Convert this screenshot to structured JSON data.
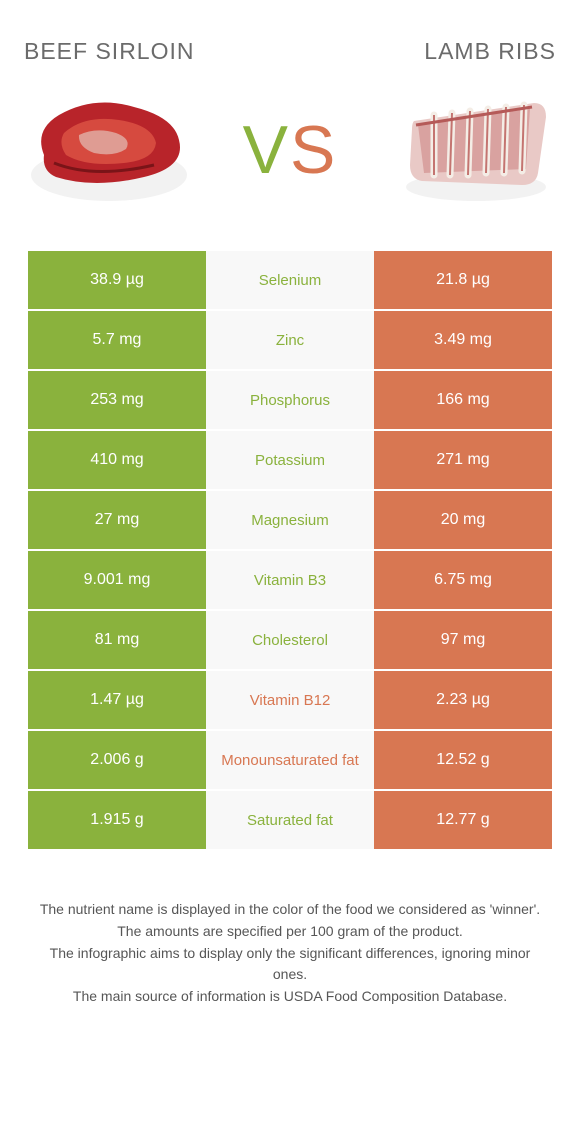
{
  "colors": {
    "food1": "#8ab23d",
    "food2": "#d87752",
    "mid_bg": "#f8f8f8",
    "title": "#6b6b6b",
    "footer": "#565656"
  },
  "food1": {
    "title": "Beef sirloin"
  },
  "food2": {
    "title": "Lamb ribs"
  },
  "vs": {
    "v": "V",
    "s": "S"
  },
  "rows": [
    {
      "left": "38.9 µg",
      "label": "Selenium",
      "right": "21.8 µg",
      "winner": "food1"
    },
    {
      "left": "5.7 mg",
      "label": "Zinc",
      "right": "3.49 mg",
      "winner": "food1"
    },
    {
      "left": "253 mg",
      "label": "Phosphorus",
      "right": "166 mg",
      "winner": "food1"
    },
    {
      "left": "410 mg",
      "label": "Potassium",
      "right": "271 mg",
      "winner": "food1"
    },
    {
      "left": "27 mg",
      "label": "Magnesium",
      "right": "20 mg",
      "winner": "food1"
    },
    {
      "left": "9.001 mg",
      "label": "Vitamin B3",
      "right": "6.75 mg",
      "winner": "food1"
    },
    {
      "left": "81 mg",
      "label": "Cholesterol",
      "right": "97 mg",
      "winner": "food1"
    },
    {
      "left": "1.47 µg",
      "label": "Vitamin B12",
      "right": "2.23 µg",
      "winner": "food2"
    },
    {
      "left": "2.006 g",
      "label": "Monounsaturated fat",
      "right": "12.52 g",
      "winner": "food2"
    },
    {
      "left": "1.915 g",
      "label": "Saturated fat",
      "right": "12.77 g",
      "winner": "food1"
    }
  ],
  "footer": {
    "l1": "The nutrient name is displayed in the color of the food we considered as 'winner'.",
    "l2": "The amounts are specified per 100 gram of the product.",
    "l3": "The infographic aims to display only the significant differences, ignoring minor ones.",
    "l4": "The main source of information is USDA Food Composition Database."
  }
}
